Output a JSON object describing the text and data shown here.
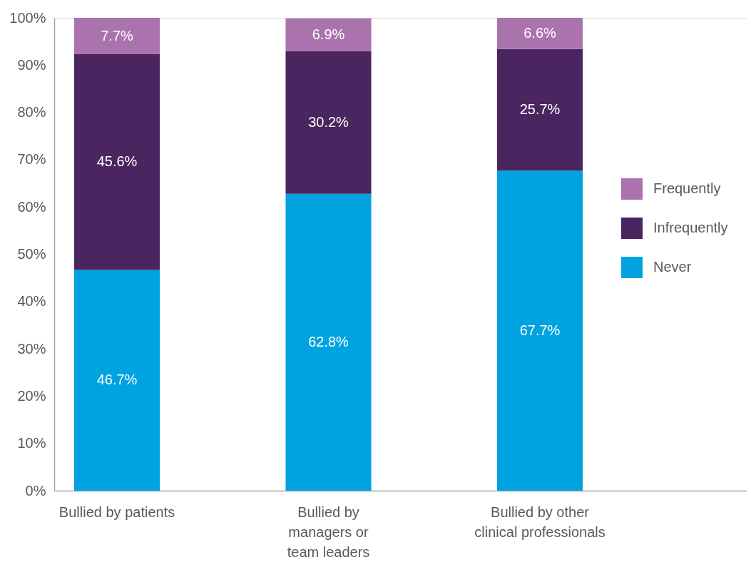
{
  "chart_data": {
    "type": "bar",
    "stacked": true,
    "categories": [
      "Bullied by patients",
      "Bullied by managers or team leaders",
      "Bullied by other clinical professionals"
    ],
    "series": [
      {
        "name": "Never",
        "color": "#00a3e0",
        "values": [
          46.7,
          62.8,
          67.7
        ],
        "value_labels": [
          "46.7%",
          "62.8%",
          "67.7%"
        ]
      },
      {
        "name": "Infrequently",
        "color": "#4a2560",
        "values": [
          45.6,
          30.2,
          25.7
        ],
        "value_labels": [
          "45.6%",
          "30.2%",
          "25.7%"
        ]
      },
      {
        "name": "Frequently",
        "color": "#ab73ae",
        "values": [
          7.7,
          6.9,
          6.6
        ],
        "value_labels": [
          "7.7%",
          "6.9%",
          "6.6%"
        ]
      }
    ],
    "ylim": [
      0,
      100
    ],
    "yticks": [
      {
        "value": 0,
        "label": "0%"
      },
      {
        "value": 10,
        "label": "10%"
      },
      {
        "value": 20,
        "label": "20%"
      },
      {
        "value": 30,
        "label": "30%"
      },
      {
        "value": 40,
        "label": "40%"
      },
      {
        "value": 50,
        "label": "50%"
      },
      {
        "value": 60,
        "label": "60%"
      },
      {
        "value": 70,
        "label": "70%"
      },
      {
        "value": 80,
        "label": "80%"
      },
      {
        "value": 90,
        "label": "90%"
      },
      {
        "value": 100,
        "label": "100%"
      }
    ],
    "legend": "right"
  }
}
